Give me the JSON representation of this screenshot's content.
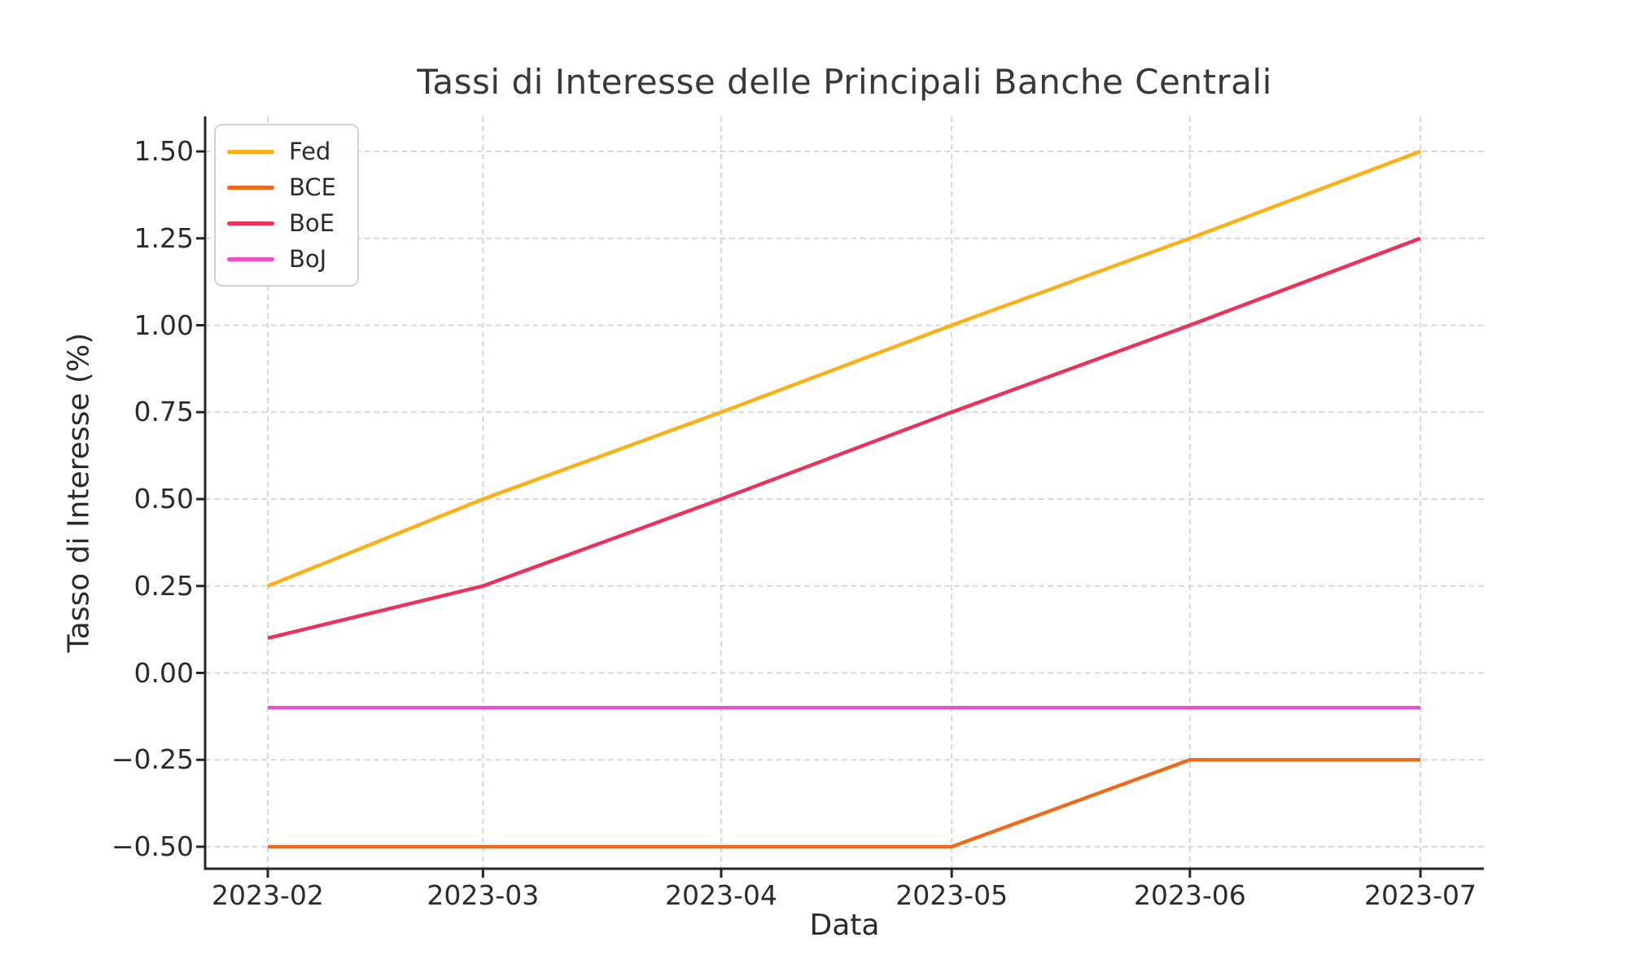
{
  "figure": {
    "title": "Tassi di Interesse delle Principali Banche Centrali",
    "xlabel": "Data",
    "ylabel": "Tasso di Interesse (%)"
  },
  "axes": {
    "x_ticks": [
      {
        "label": "2023-02",
        "day_offset": 0
      },
      {
        "label": "2023-03",
        "day_offset": 28
      },
      {
        "label": "2023-04",
        "day_offset": 59
      },
      {
        "label": "2023-05",
        "day_offset": 89
      },
      {
        "label": "2023-06",
        "day_offset": 120
      },
      {
        "label": "2023-07",
        "day_offset": 150
      }
    ],
    "y_ticks": [
      {
        "label": "1.50",
        "value": 1.5
      },
      {
        "label": "1.25",
        "value": 1.25
      },
      {
        "label": "1.00",
        "value": 1.0
      },
      {
        "label": "0.75",
        "value": 0.75
      },
      {
        "label": "0.50",
        "value": 0.5
      },
      {
        "label": "0.25",
        "value": 0.25
      },
      {
        "label": "0.00",
        "value": 0.0
      },
      {
        "label": "−0.25",
        "value": -0.25
      },
      {
        "label": "−0.50",
        "value": -0.5
      }
    ]
  },
  "colors": {
    "grid": "#d8d8d8",
    "spine": "#262626",
    "tick_text": "#2b2b2b",
    "title_text": "#383838",
    "legend_border": "#d2d2d2",
    "fed": "#FBB017",
    "bce": "#EC6C1D",
    "boe": "#E8335B",
    "boj": "#EE4FC9"
  },
  "chart_data": {
    "type": "line",
    "title": "Tassi di Interesse delle Principali Banche Centrali",
    "xlabel": "Data",
    "ylabel": "Tasso di Interesse (%)",
    "categories": [
      "2023-02",
      "2023-03",
      "2023-04",
      "2023-05",
      "2023-06",
      "2023-07"
    ],
    "series": [
      {
        "name": "Fed",
        "color": "#FBB017",
        "values": [
          0.25,
          0.5,
          0.75,
          1.0,
          1.25,
          1.5
        ]
      },
      {
        "name": "BCE",
        "color": "#EC6C1D",
        "values": [
          -0.5,
          -0.5,
          -0.5,
          -0.5,
          -0.25,
          -0.25
        ]
      },
      {
        "name": "BoE",
        "color": "#E8335B",
        "values": [
          0.1,
          0.25,
          0.5,
          0.75,
          1.0,
          1.25
        ]
      },
      {
        "name": "BoJ",
        "color": "#EE4FC9",
        "values": [
          -0.1,
          -0.1,
          -0.1,
          -0.1,
          -0.1,
          -0.1
        ]
      }
    ],
    "ylim": [
      -0.56,
      1.585
    ],
    "xlim_days": [
      -7.5,
      157.5
    ],
    "grid": true,
    "grid_style": "dashed",
    "legend_position": "upper left",
    "spines_hidden": [
      "top",
      "right"
    ]
  }
}
